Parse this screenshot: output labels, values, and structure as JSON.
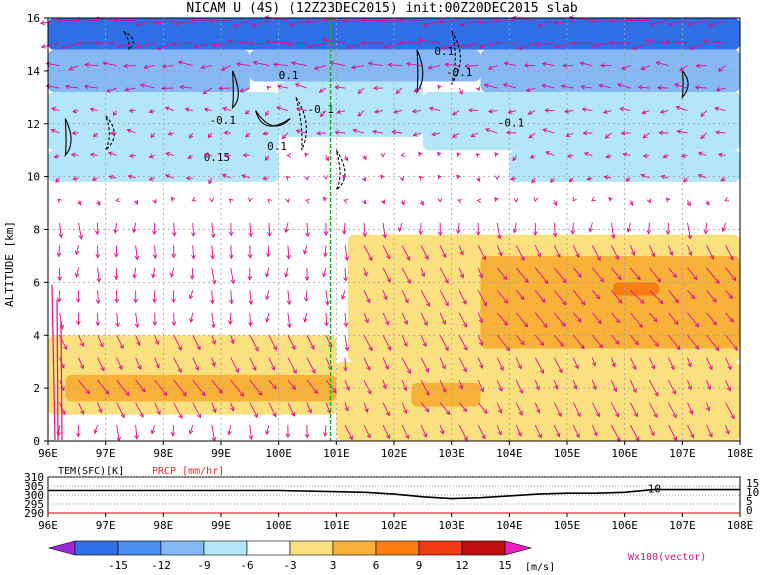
{
  "chart_data": {
    "type": "heatmap",
    "title": "NICAM U (4S) (12Z23DEC2015) init:00Z20DEC2015 slab",
    "ylabel": "ALTITUDE [km]",
    "x_ticks": [
      "96E",
      "97E",
      "98E",
      "99E",
      "100E",
      "101E",
      "102E",
      "103E",
      "104E",
      "105E",
      "106E",
      "107E",
      "108E"
    ],
    "xlim": [
      96,
      108
    ],
    "y_ticks": [
      "0",
      "2",
      "4",
      "6",
      "8",
      "10",
      "12",
      "14",
      "16"
    ],
    "ylim": [
      0,
      16
    ],
    "grid": true,
    "marker_line_lon": 100.9,
    "colorbar": {
      "levels": [
        "-15",
        "-12",
        "-9",
        "-6",
        "-3",
        "3",
        "6",
        "9",
        "12",
        "15"
      ],
      "colors": [
        "#9a28d8",
        "#2f6fe6",
        "#4a8ff0",
        "#86b8f4",
        "#b4e6fa",
        "#ffffff",
        "#fbe07f",
        "#f8b23a",
        "#f97d10",
        "#ef3a12",
        "#c01010",
        "#f01ec0"
      ],
      "units": "[m/s]"
    },
    "vector_label": "Wx100(vector)",
    "contour_labels": [
      "0.1",
      "-0.1",
      "0.1",
      "-0.1",
      "-0.1",
      "-0.1",
      "0.15",
      "0.1"
    ],
    "wind_regions": [
      {
        "x0": 96,
        "x1": 108,
        "y0": 14.8,
        "y1": 16,
        "u": -14
      },
      {
        "x0": 96,
        "x1": 99.5,
        "y0": 13.2,
        "y1": 14.8,
        "u": -8
      },
      {
        "x0": 99.5,
        "x1": 103.5,
        "y0": 13.6,
        "y1": 14.8,
        "u": -9
      },
      {
        "x0": 103.5,
        "x1": 108,
        "y0": 13.2,
        "y1": 14.8,
        "u": -7
      },
      {
        "x0": 96,
        "x1": 100,
        "y0": 11,
        "y1": 13.2,
        "u": -4
      },
      {
        "x0": 100,
        "x1": 102.5,
        "y0": 11.5,
        "y1": 13.6,
        "u": -6
      },
      {
        "x0": 102.5,
        "x1": 108,
        "y0": 11,
        "y1": 13.2,
        "u": -6
      },
      {
        "x0": 96,
        "x1": 100,
        "y0": 9.8,
        "y1": 11,
        "u": -4
      },
      {
        "x0": 104,
        "x1": 108,
        "y0": 9.8,
        "y1": 11,
        "u": -4
      },
      {
        "x0": 101.2,
        "x1": 108,
        "y0": 3,
        "y1": 7.8,
        "u": 4
      },
      {
        "x0": 103.5,
        "x1": 108,
        "y0": 3.5,
        "y1": 7,
        "u": 7
      },
      {
        "x0": 105.8,
        "x1": 106.6,
        "y0": 5.5,
        "y1": 6,
        "u": 9
      },
      {
        "x0": 96,
        "x1": 101,
        "y0": 1,
        "y1": 4,
        "u": 4
      },
      {
        "x0": 96.3,
        "x1": 101,
        "y0": 1.5,
        "y1": 2.5,
        "u": 7
      },
      {
        "x0": 101,
        "x1": 108,
        "y0": 0,
        "y1": 3,
        "u": 4
      },
      {
        "x0": 102.3,
        "x1": 103.5,
        "y0": 1.3,
        "y1": 2.2,
        "u": 7
      }
    ],
    "bottom_panel": {
      "left_label": "TEM(SFC)[K]",
      "right_label": "PRCP [mm/hr]",
      "left_ticks": [
        "310",
        "305",
        "300",
        "295",
        "290"
      ],
      "right_ticks": [
        "15",
        "10",
        "5",
        "0"
      ],
      "ylim": [
        290,
        310
      ],
      "annotation": "10",
      "temperature": {
        "x": [
          96,
          97,
          98,
          99,
          100,
          100.8,
          101.5,
          102,
          102.5,
          103,
          103.5,
          104,
          104.5,
          105,
          105.5,
          106,
          106.5,
          107,
          108
        ],
        "y": [
          302.5,
          302.5,
          302.5,
          302.5,
          302.5,
          302,
          301.5,
          300.5,
          299,
          298,
          298.5,
          299.5,
          300.5,
          301,
          301,
          301.5,
          303,
          303,
          303
        ]
      }
    }
  }
}
